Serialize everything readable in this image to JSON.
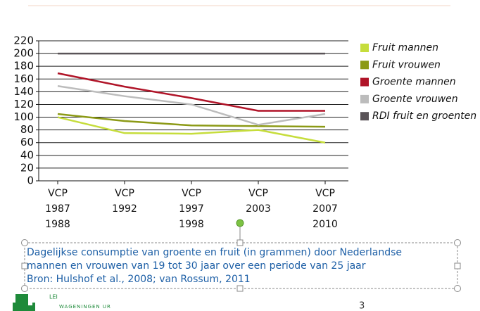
{
  "chart_data": {
    "type": "line",
    "categories": [
      "VCP\n1987\n1988",
      "VCP\n1992",
      "VCP\n1997\n1998",
      "VCP\n2003",
      "VCP\n2007\n2010"
    ],
    "series": [
      {
        "name": "Fruit mannen",
        "color": "#c6dd3c",
        "values": [
          100,
          75,
          74,
          80,
          60
        ]
      },
      {
        "name": "Fruit vrouwen",
        "color": "#8c9a16",
        "values": [
          105,
          94,
          87,
          86,
          85
        ]
      },
      {
        "name": "Groente mannen",
        "color": "#b01428",
        "values": [
          169,
          148,
          130,
          110,
          110
        ]
      },
      {
        "name": "Groente vrouwen",
        "color": "#bcbcbc",
        "values": [
          149,
          133,
          120,
          88,
          105
        ]
      },
      {
        "name": "RDI fruit en groenten",
        "color": "#5a5458",
        "values": [
          200,
          200,
          200,
          200,
          200
        ]
      }
    ],
    "ylim": [
      0,
      220
    ],
    "yticks": [
      0,
      20,
      40,
      60,
      80,
      100,
      120,
      140,
      160,
      180,
      200,
      220
    ],
    "grid": true,
    "legend": "right"
  },
  "caption": [
    "Dagelijkse consumptie van groente en fruit (in grammen) door Nederlandse",
    "mannen en vrouwen van 19 tot 30 jaar over een periode van 25 jaar",
    "Bron: Hulshof et al., 2008; van Rossum, 2011"
  ],
  "footer": {
    "logo_top": "LEI",
    "logo_bottom": "WAGENINGEN UR",
    "page": "3"
  }
}
